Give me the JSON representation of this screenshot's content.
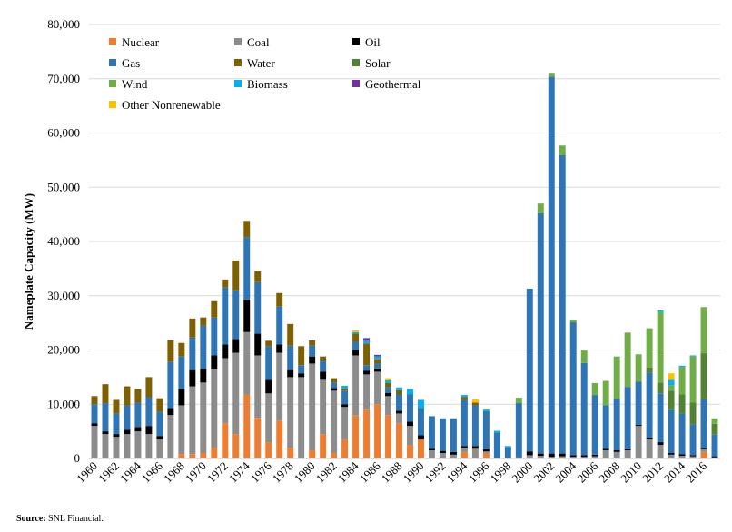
{
  "chart_data": {
    "type": "bar",
    "stacked": true,
    "ylabel": "Nameplate Capacity (MW)",
    "xlabel": "",
    "ylim": [
      0,
      80000
    ],
    "yticks": [
      0,
      10000,
      20000,
      30000,
      40000,
      50000,
      60000,
      70000,
      80000
    ],
    "ytick_labels": [
      "0",
      "10,000",
      "20,000",
      "30,000",
      "40,000",
      "50,000",
      "60,000",
      "70,000",
      "80,000"
    ],
    "legend_position": "top-left",
    "categories": [
      1960,
      1961,
      1962,
      1963,
      1964,
      1965,
      1966,
      1967,
      1968,
      1969,
      1970,
      1971,
      1972,
      1973,
      1974,
      1975,
      1976,
      1977,
      1978,
      1979,
      1980,
      1981,
      1982,
      1983,
      1984,
      1985,
      1986,
      1987,
      1988,
      1989,
      1990,
      1991,
      1992,
      1993,
      1994,
      1995,
      1996,
      1997,
      1998,
      1999,
      2000,
      2001,
      2002,
      2003,
      2004,
      2005,
      2006,
      2007,
      2008,
      2009,
      2010,
      2011,
      2012,
      2013,
      2014,
      2015,
      2016,
      2017
    ],
    "xtick_labels": [
      "1960",
      "1962",
      "1964",
      "1966",
      "1968",
      "1970",
      "1972",
      "1974",
      "1976",
      "1978",
      "1980",
      "1982",
      "1984",
      "1986",
      "1988",
      "1990",
      "1992",
      "1994",
      "1996",
      "1998",
      "2000",
      "2002",
      "2004",
      "2006",
      "2008",
      "2010",
      "2012",
      "2014",
      "2016"
    ],
    "series": [
      {
        "name": "Nuclear",
        "color": "#ed7d31",
        "values": [
          0,
          0,
          0,
          0,
          0,
          0,
          0,
          0,
          800,
          800,
          1000,
          2000,
          6500,
          4500,
          11800,
          7500,
          3000,
          7000,
          2000,
          0,
          1500,
          4500,
          1000,
          3500,
          8000,
          9000,
          10000,
          8000,
          6500,
          2500,
          3500,
          0,
          0,
          0,
          1200,
          0,
          1000,
          0,
          0,
          0,
          0,
          0,
          0,
          0,
          0,
          0,
          0,
          0,
          0,
          0,
          0,
          0,
          0,
          0,
          0,
          0,
          1200,
          0
        ]
      },
      {
        "name": "Coal",
        "color": "#8c8c8c",
        "values": [
          6000,
          4500,
          4000,
          4500,
          5000,
          4500,
          3500,
          8000,
          9000,
          12500,
          13000,
          14500,
          12000,
          15000,
          11500,
          11500,
          9000,
          12500,
          13000,
          15000,
          16000,
          10000,
          11500,
          6000,
          11000,
          6500,
          6000,
          3500,
          1800,
          3500,
          0,
          1500,
          1000,
          700,
          800,
          1800,
          300,
          0,
          0,
          0,
          600,
          500,
          300,
          400,
          300,
          300,
          400,
          1500,
          1200,
          1500,
          6000,
          3500,
          2500,
          700,
          500,
          400,
          500,
          200
        ]
      },
      {
        "name": "Oil",
        "color": "#000000",
        "values": [
          500,
          500,
          500,
          800,
          800,
          1500,
          600,
          1300,
          3000,
          3000,
          2500,
          2500,
          2500,
          2500,
          6000,
          4000,
          2500,
          1500,
          1300,
          700,
          1300,
          1500,
          500,
          500,
          1000,
          700,
          600,
          600,
          500,
          800,
          800,
          300,
          400,
          500,
          300,
          500,
          400,
          0,
          0,
          200,
          700,
          400,
          600,
          500,
          300,
          300,
          300,
          300,
          300,
          200,
          200,
          300,
          500,
          300,
          300,
          200,
          200,
          200
        ]
      },
      {
        "name": "Gas",
        "color": "#2e75b6",
        "values": [
          3500,
          5200,
          3800,
          4500,
          4500,
          5300,
          4500,
          8500,
          6000,
          6000,
          8000,
          7000,
          10500,
          9000,
          11500,
          9500,
          6200,
          7000,
          4500,
          1500,
          2000,
          2000,
          1000,
          2500,
          1500,
          1000,
          900,
          1000,
          3000,
          5000,
          5000,
          6000,
          6000,
          6200,
          8500,
          7500,
          7000,
          4800,
          2000,
          10000,
          30000,
          44300,
          69500,
          55000,
          24500,
          17000,
          11000,
          8000,
          9500,
          11500,
          8000,
          12000,
          9000,
          8000,
          7500,
          5700,
          9000,
          4000
        ]
      },
      {
        "name": "Water",
        "color": "#7f6000",
        "values": [
          1500,
          3500,
          2500,
          3500,
          2500,
          3700,
          2500,
          4000,
          2500,
          3500,
          1500,
          3000,
          1500,
          5500,
          3000,
          2000,
          1000,
          2500,
          4000,
          3500,
          1000,
          800,
          800,
          400,
          1500,
          4000,
          800,
          800,
          800,
          0,
          0,
          0,
          0,
          0,
          500,
          500,
          0,
          0,
          0,
          0,
          0,
          0,
          0,
          0,
          0,
          0,
          0,
          0,
          0,
          0,
          0,
          0,
          0,
          0,
          0,
          0,
          0,
          0
        ]
      },
      {
        "name": "Solar",
        "color": "#548235",
        "values": [
          0,
          0,
          0,
          0,
          0,
          0,
          0,
          0,
          0,
          0,
          0,
          0,
          0,
          0,
          0,
          0,
          0,
          0,
          0,
          0,
          0,
          0,
          0,
          0,
          0,
          0,
          0,
          0,
          0,
          0,
          0,
          0,
          0,
          0,
          0,
          0,
          0,
          0,
          0,
          0,
          0,
          0,
          0,
          0,
          0,
          0,
          0,
          0,
          0,
          0,
          0,
          1000,
          2000,
          3500,
          3500,
          4000,
          8500,
          2000
        ]
      },
      {
        "name": "Wind",
        "color": "#70ad47",
        "values": [
          0,
          0,
          0,
          0,
          0,
          0,
          0,
          0,
          0,
          0,
          0,
          0,
          0,
          0,
          0,
          0,
          0,
          0,
          0,
          0,
          0,
          0,
          0,
          0,
          0,
          0,
          0,
          0,
          0,
          0,
          0,
          0,
          0,
          0,
          0,
          0,
          0,
          0,
          0,
          1000,
          0,
          1800,
          700,
          1800,
          500,
          2300,
          2200,
          4500,
          7800,
          10000,
          5000,
          7200,
          13000,
          1000,
          5000,
          8500,
          8500,
          1000
        ]
      },
      {
        "name": "Biomass",
        "color": "#00b0f0",
        "values": [
          0,
          0,
          0,
          0,
          0,
          0,
          0,
          0,
          0,
          0,
          0,
          0,
          0,
          0,
          0,
          0,
          0,
          0,
          0,
          0,
          0,
          0,
          0,
          500,
          300,
          500,
          500,
          500,
          500,
          1000,
          1500,
          0,
          0,
          0,
          400,
          0,
          300,
          300,
          300,
          0,
          0,
          0,
          0,
          0,
          0,
          0,
          0,
          0,
          0,
          0,
          0,
          0,
          300,
          1000,
          300,
          200,
          0,
          0
        ]
      },
      {
        "name": "Geothermal",
        "color": "#7030a0",
        "values": [
          0,
          0,
          0,
          0,
          0,
          0,
          0,
          0,
          0,
          0,
          0,
          0,
          0,
          0,
          0,
          0,
          0,
          0,
          0,
          0,
          0,
          0,
          0,
          0,
          0,
          500,
          300,
          0,
          0,
          0,
          0,
          0,
          0,
          0,
          0,
          0,
          0,
          0,
          0,
          0,
          0,
          0,
          0,
          0,
          0,
          0,
          0,
          0,
          0,
          0,
          0,
          0,
          0,
          0,
          0,
          0,
          0,
          0
        ]
      },
      {
        "name": "Other Nonrenewable",
        "color": "#ffc000",
        "values": [
          0,
          0,
          0,
          0,
          0,
          0,
          0,
          0,
          0,
          0,
          0,
          0,
          0,
          0,
          0,
          0,
          0,
          0,
          0,
          0,
          0,
          0,
          0,
          0,
          300,
          0,
          0,
          400,
          0,
          0,
          0,
          0,
          0,
          0,
          0,
          600,
          0,
          0,
          0,
          0,
          0,
          0,
          0,
          0,
          0,
          0,
          0,
          0,
          0,
          0,
          0,
          0,
          0,
          1200,
          0,
          0,
          0,
          0
        ]
      }
    ]
  },
  "source": {
    "label": "Source:",
    "text": " SNL Financial."
  }
}
